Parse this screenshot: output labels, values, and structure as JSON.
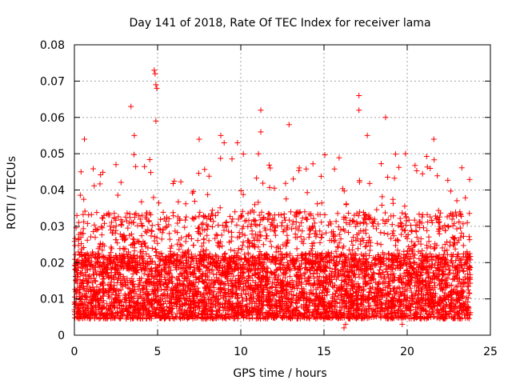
{
  "chart_data": {
    "type": "scatter",
    "title": "Day 141 of 2018, Rate Of TEC Index for receiver lama",
    "xlabel": "GPS time / hours",
    "ylabel": "ROTI / TECUs",
    "xlim": [
      0,
      25
    ],
    "ylim": [
      0,
      0.08
    ],
    "xticks": [
      0,
      5,
      10,
      15,
      20,
      25
    ],
    "xtick_labels": [
      "0",
      "5",
      "10",
      "15",
      "20",
      "25"
    ],
    "yticks": [
      0,
      0.01,
      0.02,
      0.03,
      0.04,
      0.05,
      0.06,
      0.07,
      0.08
    ],
    "ytick_labels": [
      "0",
      "0.01",
      "0.02",
      "0.03",
      "0.04",
      "0.05",
      "0.06",
      "0.07",
      "0.08"
    ],
    "grid": true,
    "marker": "+",
    "color": "#ff0000",
    "series": [
      {
        "name": "ROTI",
        "x_range": [
          0,
          23.8
        ],
        "typical_range": [
          0.004,
          0.03
        ],
        "notable_points": [
          {
            "x": 0.4,
            "y": 0.045
          },
          {
            "x": 0.6,
            "y": 0.054
          },
          {
            "x": 2.5,
            "y": 0.047
          },
          {
            "x": 3.4,
            "y": 0.063
          },
          {
            "x": 3.6,
            "y": 0.055
          },
          {
            "x": 4.8,
            "y": 0.073
          },
          {
            "x": 4.85,
            "y": 0.072
          },
          {
            "x": 4.9,
            "y": 0.069
          },
          {
            "x": 4.95,
            "y": 0.068
          },
          {
            "x": 4.9,
            "y": 0.059
          },
          {
            "x": 7.5,
            "y": 0.054
          },
          {
            "x": 8.8,
            "y": 0.055
          },
          {
            "x": 9.0,
            "y": 0.053
          },
          {
            "x": 9.8,
            "y": 0.053
          },
          {
            "x": 11.2,
            "y": 0.062
          },
          {
            "x": 11.2,
            "y": 0.056
          },
          {
            "x": 12.9,
            "y": 0.058
          },
          {
            "x": 17.1,
            "y": 0.066
          },
          {
            "x": 17.1,
            "y": 0.062
          },
          {
            "x": 17.6,
            "y": 0.055
          },
          {
            "x": 18.7,
            "y": 0.06
          },
          {
            "x": 19.9,
            "y": 0.05
          },
          {
            "x": 21.6,
            "y": 0.054
          },
          {
            "x": 16.2,
            "y": 0.002
          },
          {
            "x": 16.3,
            "y": 0.003
          },
          {
            "x": 19.7,
            "y": 0.003
          }
        ]
      }
    ]
  }
}
